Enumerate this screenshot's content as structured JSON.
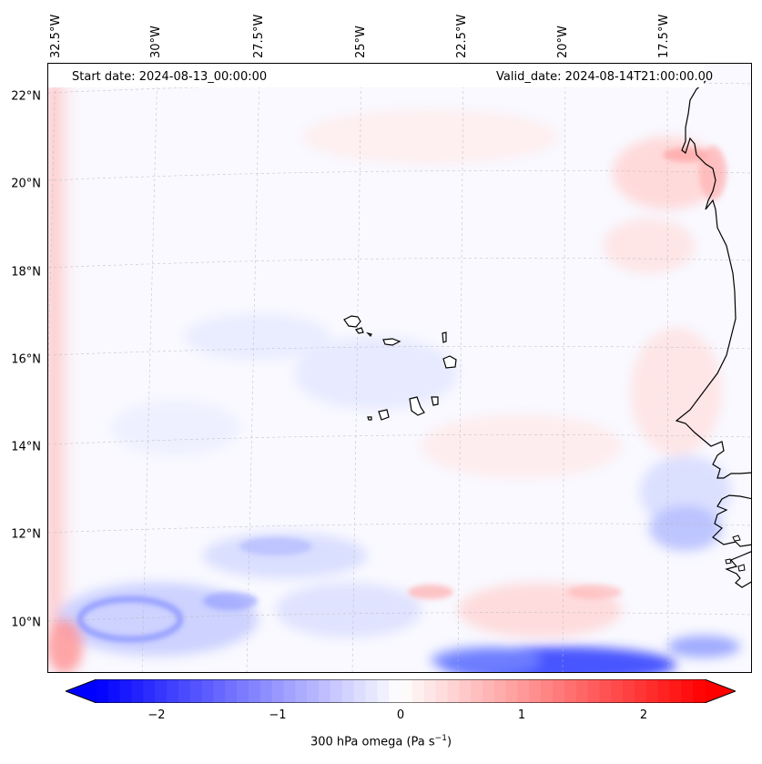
{
  "map": {
    "start_date": "Start date: 2024-08-13_00:00:00",
    "valid_date": "Valid_date: 2024-08-14T21:00:00.00",
    "lat_labels": [
      "22°N",
      "20°N",
      "18°N",
      "16°N",
      "14°N",
      "12°N",
      "10°N"
    ],
    "lon_labels": [
      "32.5°W",
      "30°W",
      "27.5°W",
      "25°W",
      "22.5°W",
      "20°W",
      "17.5°W"
    ],
    "field": "300 hPa omega",
    "region": "Eastern tropical Atlantic, Cape Verde Islands and West African coast"
  },
  "colorbar": {
    "ticks": [
      "−2",
      "−1",
      "0",
      "1",
      "2"
    ],
    "tick_values": [
      -2,
      -1,
      0,
      1,
      2
    ],
    "range": [
      -2.6,
      2.6
    ],
    "label_text": "300 hPa omega (Pa s",
    "label_exp": "−1",
    "label_close": ")",
    "colors": {
      "negative": "#0000ff",
      "zero": "#ffffff",
      "positive": "#ff0000"
    }
  }
}
